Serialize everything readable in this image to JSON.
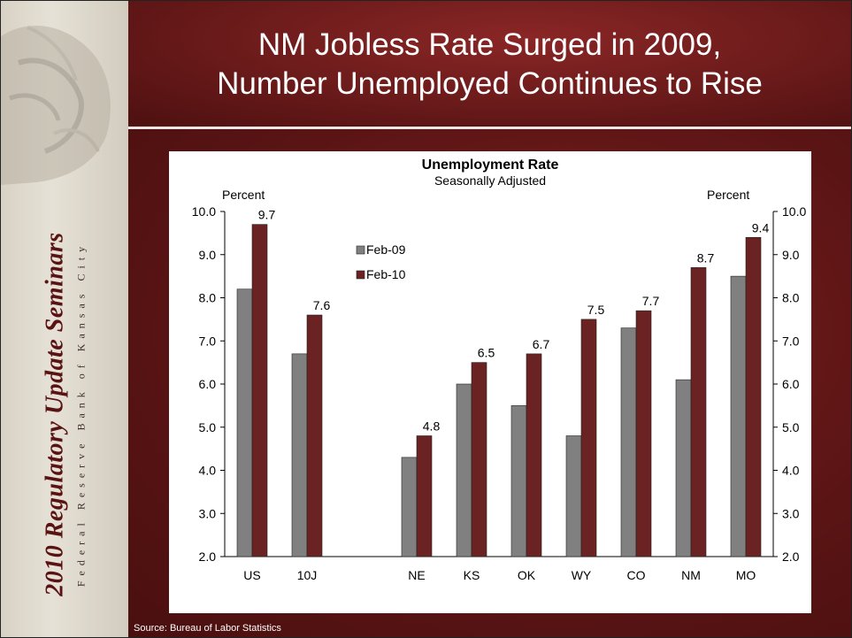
{
  "slide": {
    "title_line1": "NM Jobless Rate Surged in 2009,",
    "title_line2": "Number Unemployed Continues to Rise",
    "source": "Source: Bureau of Labor Statistics"
  },
  "sidebar": {
    "title": "2010 Regulatory Update Seminars",
    "subtitle": "Federal Reserve Bank of Kansas City"
  },
  "colors": {
    "feb09": "#808080",
    "feb10": "#6b2222",
    "slide_bg": "#5a1313"
  },
  "chart_data": {
    "type": "bar",
    "title": "Unemployment Rate",
    "subtitle": "Seasonally Adjusted",
    "ylabel_left": "Percent",
    "ylabel_right": "Percent",
    "ylim": [
      2.0,
      10.0
    ],
    "yticks": [
      "2.0",
      "3.0",
      "4.0",
      "5.0",
      "6.0",
      "7.0",
      "8.0",
      "9.0",
      "10.0"
    ],
    "categories": [
      "US",
      "10J",
      "",
      "NE",
      "KS",
      "OK",
      "WY",
      "CO",
      "NM",
      "MO"
    ],
    "series": [
      {
        "name": "Feb-09",
        "values": [
          8.2,
          6.7,
          null,
          4.3,
          6.0,
          5.5,
          4.8,
          7.3,
          6.1,
          8.5
        ]
      },
      {
        "name": "Feb-10",
        "values": [
          9.7,
          7.6,
          null,
          4.8,
          6.5,
          6.7,
          7.5,
          7.7,
          8.7,
          9.4
        ]
      }
    ],
    "data_labels": [
      "9.7",
      "7.6",
      "",
      "4.8",
      "6.5",
      "6.7",
      "7.5",
      "7.7",
      "8.7",
      "9.4"
    ],
    "legend_position": "upper-left inside plot",
    "grid": false
  }
}
